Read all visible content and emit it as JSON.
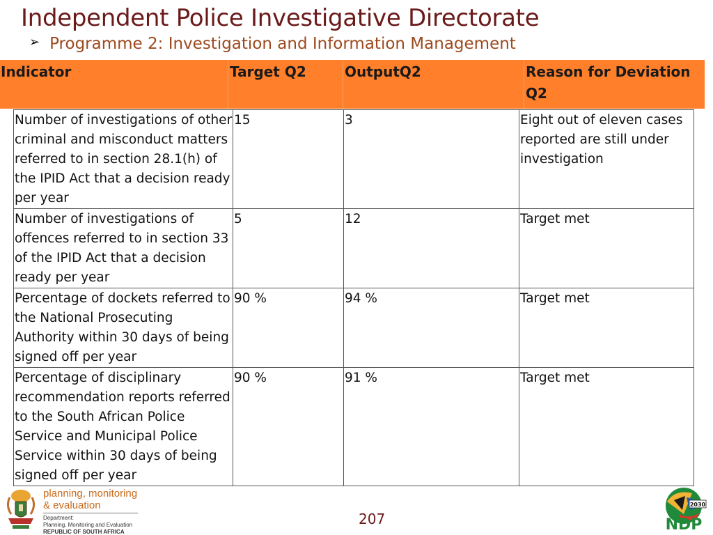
{
  "title": "Independent Police Investigative Directorate",
  "subtitle": "Programme 2: Investigation and Information Management",
  "subtitle_bullet": "➢",
  "table": {
    "headers": [
      "Indicator",
      "Target Q2",
      "OutputQ2",
      "Reason for Deviation Q2"
    ],
    "rows": [
      {
        "indicator": "Number of investigations of other criminal and misconduct matters referred to in section 28.1(h) of the IPID Act that a decision ready per year",
        "target": "15",
        "output": "3",
        "reason": "Eight out of eleven cases reported are still under investigation"
      },
      {
        "indicator": "Number of investigations of offences referred to in section 33 of the IPID Act that a decision ready per year",
        "target": "5",
        "output": "12",
        "reason": "Target met"
      },
      {
        "indicator": "Percentage of dockets referred to the National Prosecuting Authority within 30 days of being signed off per year",
        "target": "90 %",
        "output": "94 %",
        "reason": "Target met"
      },
      {
        "indicator": "Percentage of disciplinary recommendation reports referred to the South African Police Service and Municipal Police Service within 30 days of being signed off per year",
        "target": "90 %",
        "output": "91 %",
        "reason": "Target met"
      }
    ]
  },
  "footer": {
    "pme_line1": "planning, monitoring",
    "pme_line2": "& evaluation",
    "dept_line1": "Department:",
    "dept_line2": "Planning, Monitoring and Evaluation",
    "dept_line3": "REPUBLIC OF SOUTH AFRICA",
    "page_number": "207",
    "ndp_text": "NDP",
    "ndp_year": "2030"
  },
  "colors": {
    "title": "#6b1a1a",
    "subtitle": "#9c4a1e",
    "header_bar": "#ff7f2a",
    "pme_orange": "#c96a1b",
    "ndp_green": "#1f8a3a"
  },
  "icons": [
    "coat-of-arms-icon",
    "ndp-logo-icon"
  ]
}
